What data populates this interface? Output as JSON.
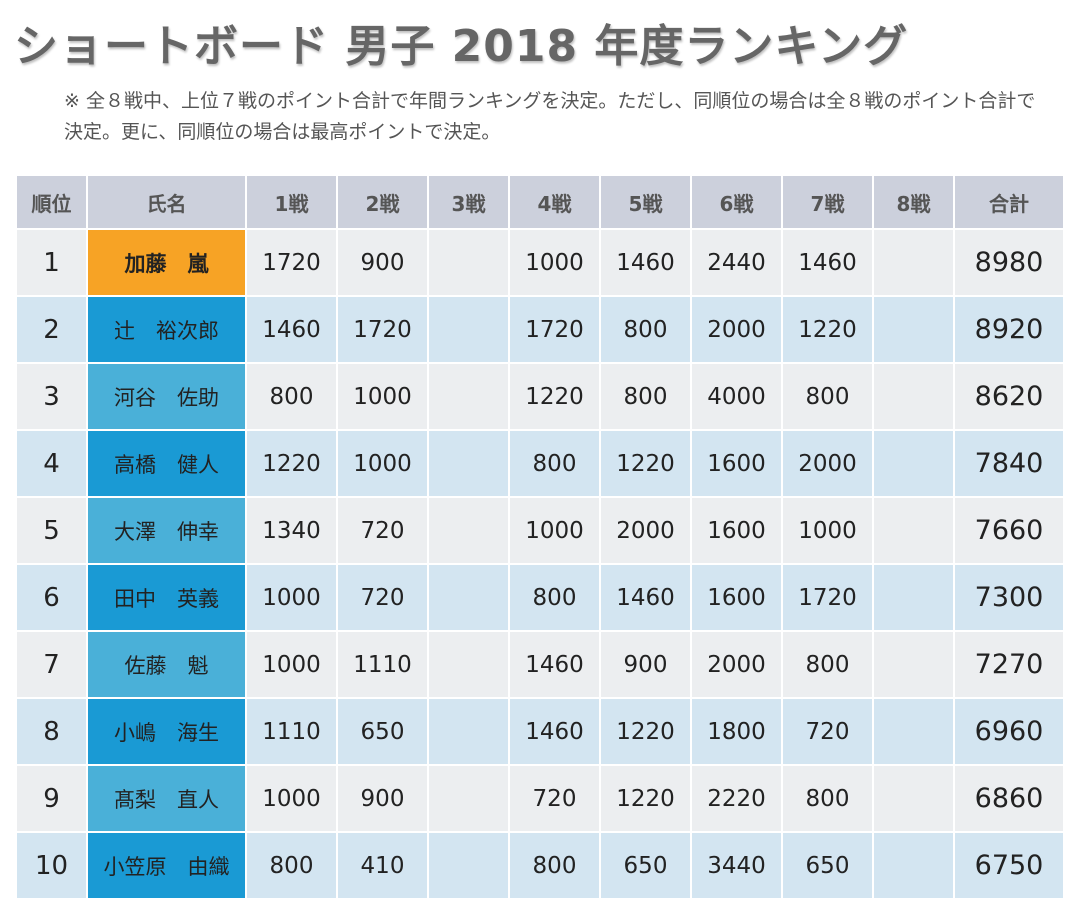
{
  "title": "ショートボード 男子 2018 年度ランキング",
  "note": "※ 全８戦中、上位７戦のポイント合計で年間ランキングを決定。ただし、同順位の場合は全８戦のポイント合計で決定。更に、同順位の場合は最高ポイントで決定。",
  "colors": {
    "first": "#f7a325",
    "name_odd": "#4ab0d8",
    "name_even": "#1a9ad4",
    "header": "#ccd0dc"
  },
  "headers": [
    "順位",
    "氏名",
    "1戦",
    "2戦",
    "3戦",
    "4戦",
    "5戦",
    "6戦",
    "7戦",
    "8戦",
    "合計"
  ],
  "rows": [
    {
      "rank": "1",
      "name": "加藤　嵐",
      "scores": [
        "1720",
        "900",
        "",
        "1000",
        "1460",
        "2440",
        "1460",
        ""
      ],
      "total": "8980"
    },
    {
      "rank": "2",
      "name": "辻　裕次郎",
      "scores": [
        "1460",
        "1720",
        "",
        "1720",
        "800",
        "2000",
        "1220",
        ""
      ],
      "total": "8920"
    },
    {
      "rank": "3",
      "name": "河谷　佐助",
      "scores": [
        "800",
        "1000",
        "",
        "1220",
        "800",
        "4000",
        "800",
        ""
      ],
      "total": "8620"
    },
    {
      "rank": "4",
      "name": "高橋　健人",
      "scores": [
        "1220",
        "1000",
        "",
        "800",
        "1220",
        "1600",
        "2000",
        ""
      ],
      "total": "7840"
    },
    {
      "rank": "5",
      "name": "大澤　伸幸",
      "scores": [
        "1340",
        "720",
        "",
        "1000",
        "2000",
        "1600",
        "1000",
        ""
      ],
      "total": "7660"
    },
    {
      "rank": "6",
      "name": "田中　英義",
      "scores": [
        "1000",
        "720",
        "",
        "800",
        "1460",
        "1600",
        "1720",
        ""
      ],
      "total": "7300"
    },
    {
      "rank": "7",
      "name": "佐藤　魁",
      "scores": [
        "1000",
        "1110",
        "",
        "1460",
        "900",
        "2000",
        "800",
        ""
      ],
      "total": "7270"
    },
    {
      "rank": "8",
      "name": "小嶋　海生",
      "scores": [
        "1110",
        "650",
        "",
        "1460",
        "1220",
        "1800",
        "720",
        ""
      ],
      "total": "6960"
    },
    {
      "rank": "9",
      "name": "髙梨　直人",
      "scores": [
        "1000",
        "900",
        "",
        "720",
        "1220",
        "2220",
        "800",
        ""
      ],
      "total": "6860"
    },
    {
      "rank": "10",
      "name": "小笠原　由織",
      "scores": [
        "800",
        "410",
        "",
        "800",
        "650",
        "3440",
        "650",
        ""
      ],
      "total": "6750"
    }
  ]
}
